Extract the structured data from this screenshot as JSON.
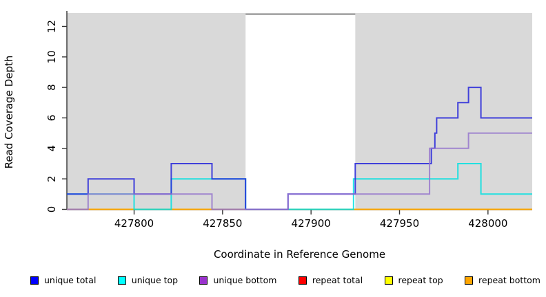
{
  "chart_data": {
    "type": "line",
    "subtype": "step-coverage",
    "title": "",
    "xlabel": "Coordinate in Reference Genome",
    "ylabel": "Read Coverage Depth",
    "xlim": [
      427762,
      428025
    ],
    "ylim": [
      0,
      13
    ],
    "x_ticks": [
      427800,
      427850,
      427900,
      427950,
      428000
    ],
    "y_ticks": [
      0,
      2,
      4,
      6,
      8,
      10,
      12
    ],
    "grid": "off",
    "legend_position": "bottom",
    "plot_background_color": "#d9d9d9",
    "gap_region": {
      "comment_visible_as": "white unshaded interval in middle of plot",
      "x_start": 427863,
      "x_end": 427925,
      "fill": "#ffffff",
      "top_border_color": "#808080"
    },
    "series": [
      {
        "name": "repeat total",
        "color": "#ff0000",
        "steps": [
          [
            427762,
            0
          ],
          [
            428025,
            0
          ]
        ]
      },
      {
        "name": "repeat top",
        "color": "#ffff00",
        "steps": [
          [
            427762,
            0
          ],
          [
            428025,
            0
          ]
        ]
      },
      {
        "name": "repeat bottom",
        "color": "#ff9f00",
        "steps": [
          [
            427762,
            0
          ],
          [
            428025,
            0
          ]
        ]
      },
      {
        "name": "unique top",
        "color": "#00e0e0",
        "steps": [
          [
            427762,
            1
          ],
          [
            427800,
            0
          ],
          [
            427821,
            2
          ],
          [
            427863,
            0
          ],
          [
            427924,
            2
          ],
          [
            427983,
            3
          ],
          [
            427996,
            1
          ],
          [
            428025,
            1
          ]
        ]
      },
      {
        "name": "unique total",
        "color": "#2424d9",
        "steps": [
          [
            427762,
            1
          ],
          [
            427774,
            2
          ],
          [
            427800,
            1
          ],
          [
            427821,
            3
          ],
          [
            427844,
            2
          ],
          [
            427863,
            0
          ],
          [
            427887,
            1
          ],
          [
            427925,
            3
          ],
          [
            427968,
            4
          ],
          [
            427970,
            5
          ],
          [
            427971,
            6
          ],
          [
            427983,
            7
          ],
          [
            427989,
            8
          ],
          [
            427996,
            6
          ],
          [
            428025,
            6
          ]
        ]
      },
      {
        "name": "unique bottom",
        "color": "#9575cd",
        "steps": [
          [
            427762,
            0
          ],
          [
            427774,
            1
          ],
          [
            427844,
            0
          ],
          [
            427887,
            1
          ],
          [
            427967,
            4
          ],
          [
            427989,
            5
          ],
          [
            428025,
            5
          ]
        ]
      }
    ],
    "legend": [
      {
        "label": "unique total",
        "color": "#0000ff"
      },
      {
        "label": "unique top",
        "color": "#00ffff"
      },
      {
        "label": "unique bottom",
        "color": "#9932cc"
      },
      {
        "label": "repeat total",
        "color": "#ff0000"
      },
      {
        "label": "repeat top",
        "color": "#ffff00"
      },
      {
        "label": "repeat bottom",
        "color": "#ffa500"
      }
    ],
    "axis_color": "#333333",
    "tick_label_color": "#000000",
    "tick_label_font_px": 15
  }
}
